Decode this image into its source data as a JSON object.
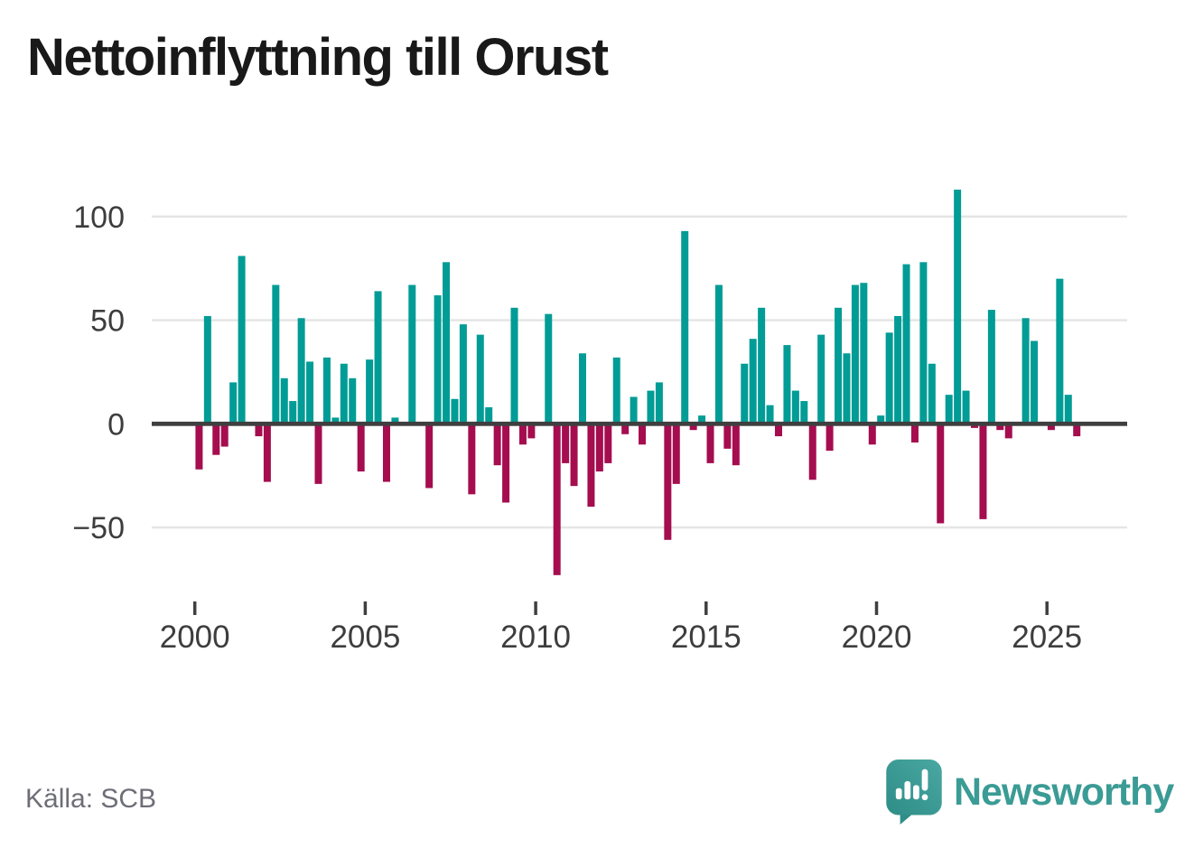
{
  "title": "Nettoinflyttning till Orust",
  "source": "Källa: SCB",
  "brand": {
    "name": "Newsworthy"
  },
  "colors": {
    "positive": "#009C95",
    "negative": "#A50D4F",
    "grid": "#E5E5E5",
    "zero_line": "#3F3F3F",
    "axis_text": "#3D3D3D",
    "title_text": "#191919",
    "source_text": "#6E6E78",
    "brand_teal": "#3B9B95"
  },
  "chart_data": {
    "type": "bar",
    "title": "Nettoinflyttning till Orust",
    "frequency": "quarterly",
    "x_start_year": 2000,
    "x_tick_labels": [
      "2000",
      "2005",
      "2010",
      "2015",
      "2020",
      "2025"
    ],
    "y_ticks": [
      100,
      50,
      0,
      -50
    ],
    "y_tick_labels": [
      "100",
      "50",
      "0",
      "−50"
    ],
    "ylim": [
      -80,
      120
    ],
    "grid": true,
    "positive_color": "#009C95",
    "negative_color": "#A50D4F",
    "series": [
      {
        "name": "Nettoinflyttning",
        "values": [
          -22,
          52,
          -15,
          -11,
          20,
          81,
          0,
          -6,
          -28,
          67,
          22,
          11,
          51,
          30,
          -29,
          32,
          3,
          29,
          22,
          -23,
          31,
          64,
          -28,
          3,
          0,
          67,
          0,
          -31,
          62,
          78,
          12,
          48,
          -34,
          43,
          8,
          -20,
          -38,
          56,
          -10,
          -7,
          0,
          53,
          -73,
          -19,
          -30,
          34,
          -40,
          -23,
          -19,
          32,
          -5,
          13,
          -10,
          16,
          20,
          -56,
          -29,
          93,
          -3,
          4,
          -19,
          67,
          -12,
          -20,
          29,
          41,
          56,
          9,
          -6,
          38,
          16,
          11,
          -27,
          43,
          -13,
          56,
          34,
          67,
          68,
          -10,
          4,
          44,
          52,
          77,
          -9,
          78,
          29,
          -48,
          14,
          113,
          16,
          -2,
          -46,
          55,
          -3,
          -7,
          0,
          51,
          40,
          0,
          -3,
          70,
          14,
          -6
        ]
      }
    ]
  }
}
